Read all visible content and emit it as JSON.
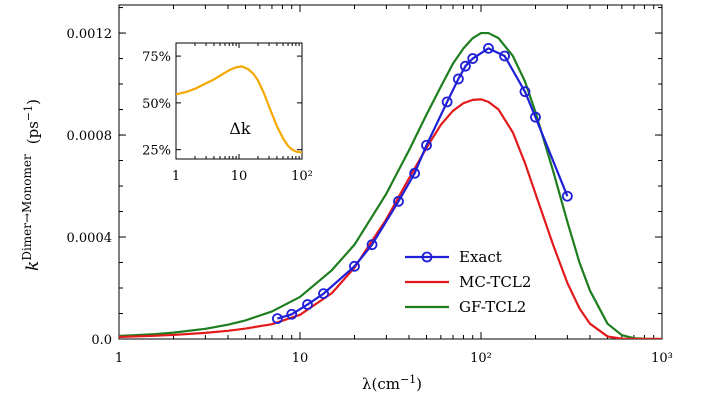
{
  "chart_data": [
    {
      "type": "line",
      "xscale": "log",
      "xlim": [
        1,
        1000
      ],
      "ylim": [
        0,
        0.00131
      ],
      "xticks": [
        1,
        10,
        100,
        1000
      ],
      "xtick_labels": [
        "1",
        "10",
        "10²",
        "10³"
      ],
      "yticks": [
        0,
        0.0004,
        0.0008,
        0.0012
      ],
      "ytick_labels": [
        "0.0",
        "0.0004",
        "0.0008",
        "0.0012"
      ],
      "xlabel": {
        "base": "λ(cm",
        "sup": "−1",
        "close": ")"
      },
      "ylabel": {
        "base": "k",
        "sup": "Dimer→Monomer",
        "unit": "(ps",
        "unit_sup": "−1",
        "unit_close": ")"
      },
      "grid": false,
      "legend_position": "lower-right",
      "series": [
        {
          "name": "Exact",
          "color": "#1f1fd6",
          "marker": "circle",
          "x": [
            7.5,
            9,
            11,
            13.5,
            20,
            25,
            35,
            43,
            50,
            65,
            75,
            82,
            90,
            110,
            135,
            175,
            200,
            300
          ],
          "y": [
            8e-05,
            9.7e-05,
            0.000135,
            0.000178,
            0.000285,
            0.00037,
            0.00054,
            0.00065,
            0.00076,
            0.00093,
            0.00102,
            0.00107,
            0.0011,
            0.00114,
            0.00111,
            0.00097,
            0.00087,
            0.00056
          ]
        },
        {
          "name": "MC-TCL2",
          "color": "#e31a1c",
          "x": [
            1,
            1.5,
            2,
            3,
            4,
            5,
            7,
            10,
            15,
            20,
            30,
            40,
            50,
            60,
            70,
            80,
            90,
            100,
            110,
            125,
            150,
            175,
            200,
            250,
            300,
            350,
            400,
            500,
            600,
            700,
            1000
          ],
          "y": [
            8e-06,
            1.2e-05,
            1.6e-05,
            2.4e-05,
            3.2e-05,
            4.1e-05,
            5.8e-05,
            9.5e-05,
            0.00018,
            0.00028,
            0.00047,
            0.00063,
            0.00075,
            0.00084,
            0.000895,
            0.000925,
            0.000938,
            0.00094,
            0.00093,
            0.0009,
            0.00081,
            0.00069,
            0.00057,
            0.00037,
            0.00022,
            0.00012,
            6e-05,
            1e-05,
            1e-06,
            0,
            0
          ]
        },
        {
          "name": "GF-TCL2",
          "color": "#1e7d1e",
          "x": [
            1,
            1.5,
            2,
            3,
            4,
            5,
            7,
            10,
            15,
            20,
            30,
            40,
            50,
            60,
            70,
            80,
            90,
            100,
            110,
            125,
            150,
            175,
            200,
            250,
            300,
            350,
            400,
            500,
            600,
            700,
            800,
            1000
          ],
          "y": [
            1.2e-05,
            1.8e-05,
            2.5e-05,
            4e-05,
            5.6e-05,
            7.3e-05,
            0.000108,
            0.000165,
            0.00027,
            0.00037,
            0.00057,
            0.00074,
            0.00088,
            0.00099,
            0.00108,
            0.00114,
            0.00118,
            0.0012,
            0.0012,
            0.00118,
            0.00111,
            0.00101,
            0.00089,
            0.00066,
            0.00046,
            0.0003,
            0.00019,
            6e-05,
            1.5e-05,
            3e-06,
            1e-06,
            0
          ]
        }
      ]
    },
    {
      "type": "line",
      "xscale": "log",
      "xlim": [
        1,
        100
      ],
      "ylim": [
        0.2,
        0.82
      ],
      "xticks": [
        1,
        10,
        100
      ],
      "xtick_labels": [
        "1",
        "10",
        "10²"
      ],
      "yticks": [
        0.25,
        0.5,
        0.75
      ],
      "ytick_labels": [
        "25%",
        "50%",
        "75%"
      ],
      "annotation": "Δk",
      "series": [
        {
          "color": "#f5a800",
          "x": [
            1,
            1.5,
            2,
            3,
            4,
            5,
            7,
            9,
            11,
            12,
            14,
            17,
            20,
            25,
            30,
            40,
            50,
            60,
            70,
            80,
            100
          ],
          "y": [
            0.545,
            0.56,
            0.575,
            0.605,
            0.625,
            0.645,
            0.675,
            0.69,
            0.695,
            0.69,
            0.68,
            0.655,
            0.62,
            0.55,
            0.48,
            0.375,
            0.31,
            0.27,
            0.25,
            0.24,
            0.235
          ]
        }
      ]
    }
  ]
}
